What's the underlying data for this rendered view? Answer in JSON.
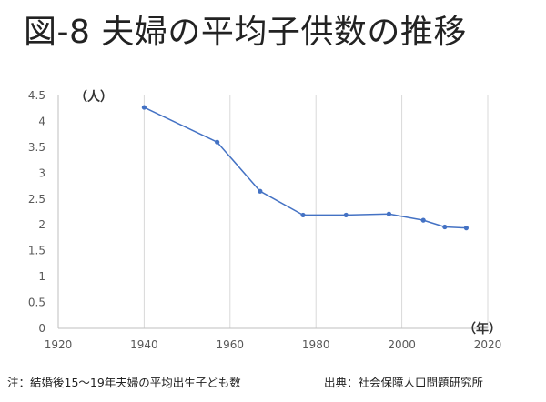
{
  "title": "図-8 夫婦の平均子供数の推移",
  "note": "注：結婚後15〜19年夫婦の平均出生子ども数",
  "source": "出典：社会保障人口問題研究所",
  "chart_data": {
    "type": "line",
    "title": "図-8 夫婦の平均子供数の推移",
    "ylabel": "（人）",
    "xlabel": "（年）",
    "xlim": [
      1920,
      2020
    ],
    "ylim": [
      0,
      4.5
    ],
    "xticks": [
      1920,
      1940,
      1960,
      1980,
      2000,
      2020
    ],
    "yticks": [
      0,
      0.5,
      1,
      1.5,
      2,
      2.5,
      3,
      3.5,
      4,
      4.5
    ],
    "grid": "vertical",
    "series": [
      {
        "x": [
          1940,
          1957,
          1967,
          1977,
          1987,
          1997,
          2005,
          2010,
          2015
        ],
        "values": [
          4.27,
          3.6,
          2.65,
          2.19,
          2.19,
          2.21,
          2.09,
          1.96,
          1.94
        ],
        "color": "#4472C4"
      }
    ]
  }
}
